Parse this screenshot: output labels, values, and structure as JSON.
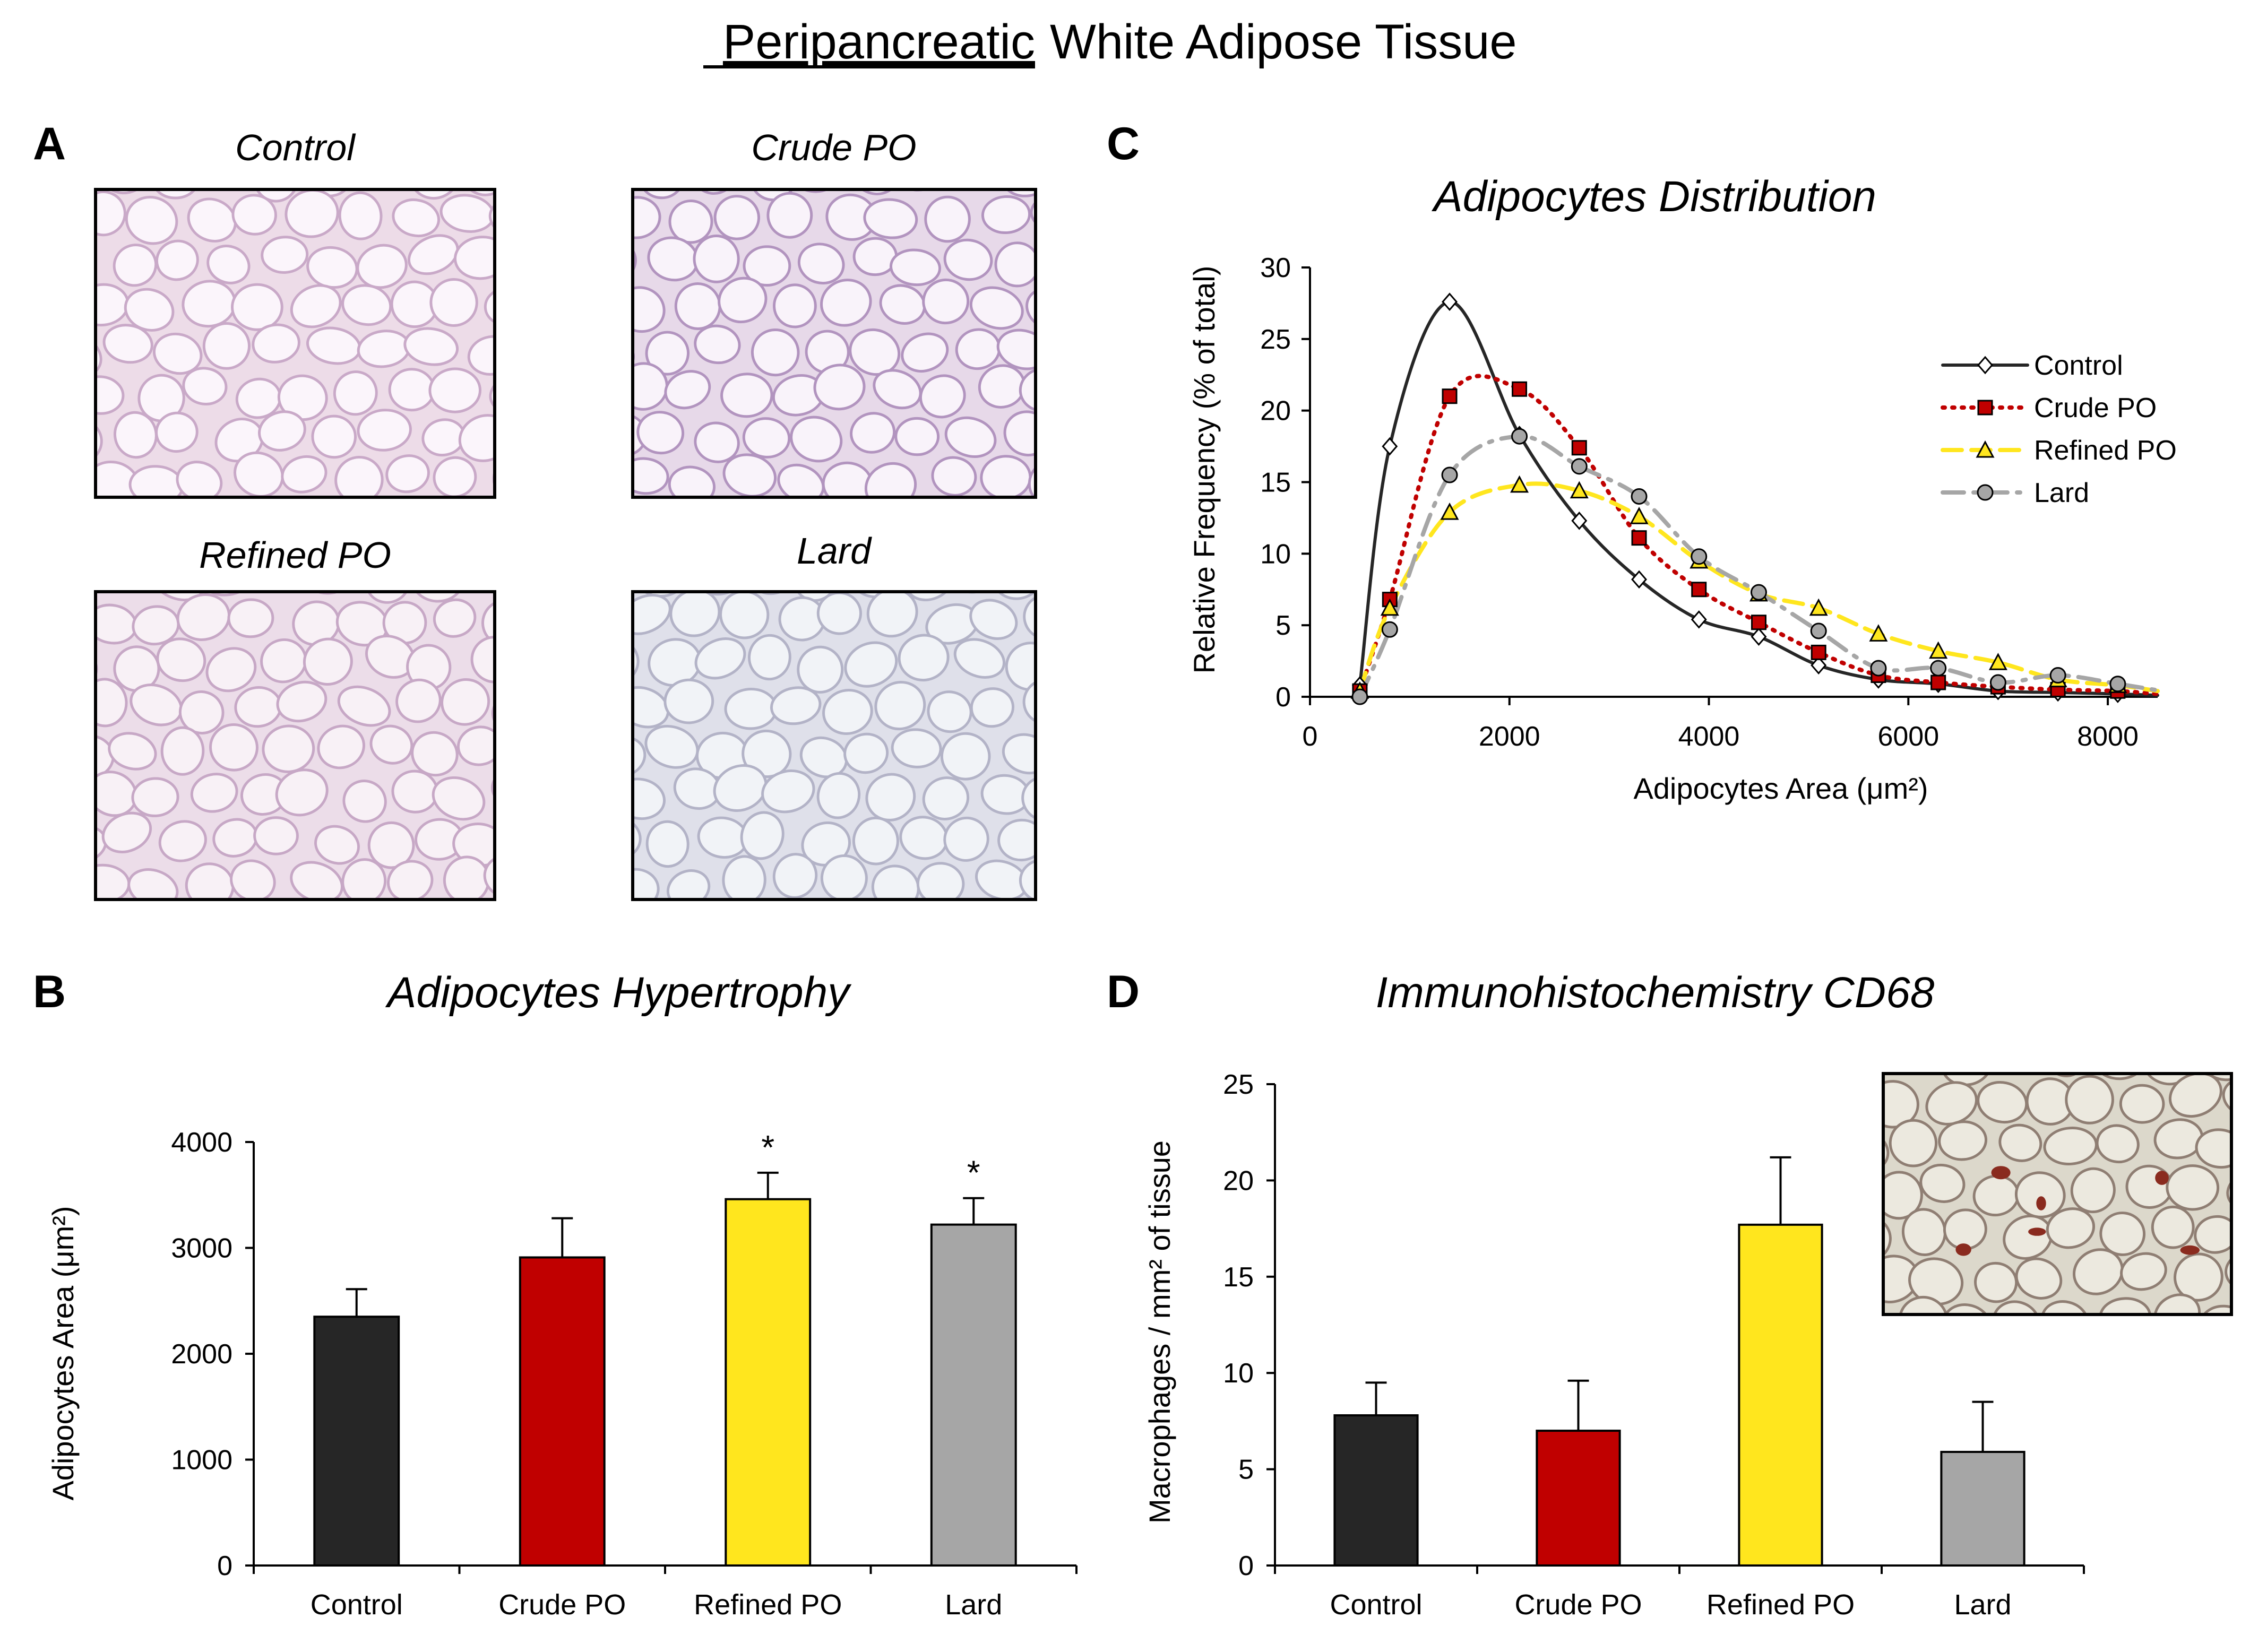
{
  "figure_title": {
    "underlined": "Peripancreatic",
    "rest": "White Adipose Tissue"
  },
  "colors": {
    "control": "#262626",
    "crude": "#c00000",
    "refined": "#ffe61e",
    "lard": "#a6a6a6"
  },
  "panel_a": {
    "label": "A",
    "images": [
      {
        "title": "Control",
        "bg": "#eddce8",
        "cell": "#fbf5fb",
        "wall": "#c9a9c8"
      },
      {
        "title": "Crude PO",
        "bg": "#e7d9e9",
        "cell": "#f9f3fa",
        "wall": "#b294bf"
      },
      {
        "title": "Refined PO",
        "bg": "#ecdde9",
        "cell": "#f8f1f6",
        "wall": "#c7a8c6"
      },
      {
        "title": "Lard",
        "bg": "#dfe0ea",
        "cell": "#f1f3f7",
        "wall": "#b3b3c7"
      }
    ]
  },
  "panel_d_inset": {
    "bg": "#dcd8cb",
    "cell": "#ece9df",
    "wall": "#8f7e73",
    "spot": "#8a2b1f"
  },
  "chart_data": [
    {
      "panel": "B",
      "type": "bar",
      "title": "Adipocytes Hypertrophy",
      "xlabel": "",
      "ylabel": "Adipocytes Area (μm²)",
      "categories": [
        "Control",
        "Crude PO",
        "Refined PO",
        "Lard"
      ],
      "values": [
        2350,
        2910,
        3460,
        3220
      ],
      "errors": [
        260,
        370,
        250,
        250
      ],
      "significance": [
        "",
        "",
        "*",
        "*"
      ],
      "ylim": [
        0,
        4000
      ],
      "yticks": [
        0,
        1000,
        2000,
        3000,
        4000
      ],
      "colors": [
        "#262626",
        "#c00000",
        "#ffe61e",
        "#a6a6a6"
      ]
    },
    {
      "panel": "C",
      "type": "line",
      "title": "Adipocytes Distribution",
      "xlabel": "Adipocytes Area (μm²)",
      "ylabel": "Relative Frequency (% of total)",
      "xlim": [
        0,
        8500
      ],
      "ylim": [
        0,
        30
      ],
      "xticks": [
        0,
        2000,
        4000,
        6000,
        8000
      ],
      "yticks": [
        0,
        5,
        10,
        15,
        20,
        25,
        30
      ],
      "legend_position": "right",
      "series": [
        {
          "name": "Control",
          "color": "#262626",
          "dash": "solid",
          "marker": "diamond",
          "x": [
            500,
            800,
            1400,
            2100,
            2700,
            3300,
            3900,
            4500,
            5100,
            5700,
            6300,
            6900,
            7500,
            8100
          ],
          "y": [
            0.8,
            17.5,
            27.6,
            18.3,
            12.3,
            8.2,
            5.4,
            4.2,
            2.2,
            1.2,
            0.9,
            0.4,
            0.3,
            0.2
          ]
        },
        {
          "name": "Crude PO",
          "color": "#c00000",
          "dash": "dotted",
          "marker": "square",
          "x": [
            500,
            800,
            1400,
            2100,
            2700,
            3300,
            3900,
            4500,
            5100,
            5700,
            6300,
            6900,
            7500,
            8100
          ],
          "y": [
            0.4,
            6.8,
            21.0,
            21.5,
            17.4,
            11.1,
            7.5,
            5.2,
            3.1,
            1.5,
            1.0,
            0.7,
            0.5,
            0.4
          ]
        },
        {
          "name": "Refined PO",
          "color": "#ffe61e",
          "dash": "dashed",
          "marker": "triangle",
          "x": [
            500,
            800,
            1400,
            2100,
            2700,
            3300,
            3900,
            4500,
            5100,
            5700,
            6300,
            6900,
            7500,
            8100
          ],
          "y": [
            0.4,
            6.2,
            12.9,
            14.8,
            14.4,
            12.6,
            9.5,
            7.2,
            6.2,
            4.4,
            3.2,
            2.4,
            1.2,
            0.8
          ]
        },
        {
          "name": "Lard",
          "color": "#a6a6a6",
          "dash": "dashdot",
          "marker": "circle",
          "x": [
            500,
            800,
            1400,
            2100,
            2700,
            3300,
            3900,
            4500,
            5100,
            5700,
            6300,
            6900,
            7500,
            8100
          ],
          "y": [
            0.0,
            4.7,
            15.5,
            18.2,
            16.1,
            14.0,
            9.8,
            7.3,
            4.6,
            2.0,
            2.0,
            1.0,
            1.5,
            0.9
          ]
        }
      ]
    },
    {
      "panel": "D",
      "type": "bar",
      "title": "Immunohistochemistry CD68",
      "xlabel": "",
      "ylabel": "Macrophages / mm² of tissue",
      "categories": [
        "Control",
        "Crude PO",
        "Refined PO",
        "Lard"
      ],
      "values": [
        7.8,
        7.0,
        17.7,
        5.9
      ],
      "errors": [
        1.7,
        2.6,
        3.5,
        2.6
      ],
      "significance": [
        "",
        "",
        "",
        ""
      ],
      "ylim": [
        0,
        25
      ],
      "yticks": [
        0,
        5,
        10,
        15,
        20,
        25
      ],
      "colors": [
        "#262626",
        "#c00000",
        "#ffe61e",
        "#a6a6a6"
      ]
    }
  ]
}
